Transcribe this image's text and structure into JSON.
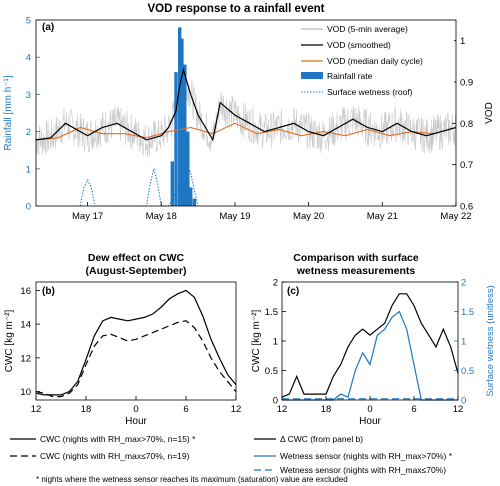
{
  "colors": {
    "black": "#000000",
    "blue": "#1f77c3",
    "orange": "#e2701f",
    "gray": "#c8c8c8",
    "bar": "#1f77c3"
  },
  "chart_data": [
    {
      "panel_label": "(a)",
      "type": "line",
      "title": "VOD response to a rainfall event",
      "xlabel": "",
      "ylabel_left": "Rainfall [mm h⁻¹]",
      "ylabel_right": "VOD",
      "x_ticks": [
        "May 17",
        "May 18",
        "May 19",
        "May 20",
        "May 21",
        "May 22"
      ],
      "ylim_left": [
        0,
        5
      ],
      "yticks_left": [
        "0",
        "1",
        "2",
        "3",
        "4",
        "5"
      ],
      "ylim_right": [
        0.6,
        1.05
      ],
      "yticks_right": [
        "0.6",
        "0.7",
        "0.8",
        "0.9",
        "1"
      ],
      "legend": [
        "VOD (5-min average)",
        "VOD (smoothed)",
        "VOD (median daily cycle)",
        "Rainfall rate",
        "Surface wetness (roof)"
      ],
      "legend_position": "top-right",
      "series": [
        {
          "name": "VOD (smoothed)",
          "x": [
            16.3,
            16.5,
            16.7,
            16.9,
            17.0,
            17.2,
            17.4,
            17.6,
            17.8,
            18.0,
            18.1,
            18.2,
            18.25,
            18.3,
            18.4,
            18.5,
            18.6,
            18.7,
            18.8,
            19.0,
            19.2,
            19.4,
            19.6,
            19.8,
            20.0,
            20.2,
            20.4,
            20.6,
            20.8,
            21.0,
            21.2,
            21.4,
            21.6,
            21.8,
            22.0
          ],
          "y": [
            0.76,
            0.765,
            0.8,
            0.78,
            0.77,
            0.79,
            0.8,
            0.78,
            0.76,
            0.77,
            0.79,
            0.83,
            0.89,
            0.93,
            0.87,
            0.82,
            0.79,
            0.76,
            0.85,
            0.82,
            0.8,
            0.78,
            0.79,
            0.8,
            0.78,
            0.77,
            0.79,
            0.81,
            0.79,
            0.78,
            0.8,
            0.78,
            0.77,
            0.78,
            0.79
          ]
        },
        {
          "name": "VOD (median daily cycle)",
          "x": [
            16.3,
            16.6,
            16.9,
            17.2,
            17.5,
            17.8,
            18.1,
            18.4,
            18.7,
            19.0,
            19.3,
            19.6,
            19.9,
            20.2,
            20.5,
            20.8,
            21.1,
            21.4,
            21.7,
            22.0
          ],
          "y": [
            0.76,
            0.765,
            0.79,
            0.775,
            0.775,
            0.765,
            0.78,
            0.79,
            0.775,
            0.8,
            0.775,
            0.785,
            0.77,
            0.78,
            0.77,
            0.785,
            0.77,
            0.78,
            0.775,
            0.79
          ]
        },
        {
          "name": "Rainfall rate",
          "x": [
            18.15,
            18.2,
            18.25,
            18.28,
            18.32,
            18.36,
            18.4,
            18.45
          ],
          "y": [
            1.2,
            3.6,
            4.8,
            4.5,
            3.8,
            2.0,
            0.5,
            0.2
          ]
        },
        {
          "name": "Surface wetness (roof)",
          "x": [
            16.9,
            16.95,
            17.0,
            17.05,
            17.1,
            17.8,
            17.85,
            17.9,
            17.95,
            18.0,
            18.1,
            18.3,
            18.35,
            18.4,
            18.45,
            18.5
          ],
          "y": [
            0,
            0.5,
            0.7,
            0.5,
            0,
            0,
            0.6,
            1.0,
            0.6,
            0,
            0,
            0.8,
            1.1,
            0.9,
            0.4,
            0
          ]
        }
      ]
    },
    {
      "panel_label": "(b)",
      "type": "line",
      "title": "Dew effect on CWC (August-September)",
      "title_lines": [
        "Dew effect on CWC",
        "(August-September)"
      ],
      "xlabel": "Hour",
      "ylabel": "CWC [kg m⁻²]",
      "x_ticks": [
        "12",
        "18",
        "0",
        "6",
        "12"
      ],
      "ylim": [
        9.5,
        16.5
      ],
      "yticks": [
        "10",
        "12",
        "14",
        "16"
      ],
      "series": [
        {
          "name": "CWC (nights with RH_max>70%, n=15) *",
          "x": [
            0,
            1,
            2,
            3,
            4,
            5,
            6,
            7,
            8,
            9,
            10,
            11,
            12,
            13,
            14,
            15,
            16,
            17,
            18,
            19,
            20,
            21,
            22,
            23,
            24
          ],
          "y": [
            9.9,
            9.8,
            9.8,
            9.8,
            10.0,
            10.6,
            11.9,
            13.3,
            14.2,
            14.4,
            14.3,
            14.2,
            14.3,
            14.4,
            14.6,
            15.0,
            15.5,
            15.8,
            16.0,
            15.6,
            14.5,
            13.1,
            12.0,
            11.0,
            10.4
          ]
        },
        {
          "name": "CWC (nights with RH_max≤70%, n=19)",
          "x": [
            0,
            1,
            2,
            3,
            4,
            5,
            6,
            7,
            8,
            9,
            10,
            11,
            12,
            13,
            14,
            15,
            16,
            17,
            18,
            19,
            20,
            21,
            22,
            23,
            24
          ],
          "y": [
            10.0,
            9.9,
            9.7,
            9.7,
            9.9,
            10.4,
            11.6,
            12.7,
            13.3,
            13.4,
            13.2,
            13.0,
            13.1,
            13.3,
            13.5,
            13.7,
            13.9,
            14.1,
            14.2,
            13.8,
            13.0,
            12.0,
            11.2,
            10.6,
            10.0
          ]
        }
      ],
      "legend": [
        "CWC (nights with RH_max>70%, n=15) *",
        "CWC (nights with RH_max≤70%, n=19)"
      ]
    },
    {
      "panel_label": "(c)",
      "type": "line",
      "title": "Comparison with surface wetness measurements",
      "title_lines": [
        "Comparison with surface",
        "wetness measurements"
      ],
      "xlabel": "Hour",
      "ylabel_left": "CWC [kg m⁻²]",
      "ylabel_right": "Surface wetness (unitless)",
      "x_ticks": [
        "12",
        "18",
        "0",
        "6",
        "12"
      ],
      "ylim_left": [
        0,
        2
      ],
      "yticks_left": [
        "0",
        "0.5",
        "1",
        "1.5",
        "2"
      ],
      "ylim_right": [
        0,
        2
      ],
      "yticks_right": [
        "0",
        "0.5",
        "1",
        "1.5",
        "2"
      ],
      "series": [
        {
          "name": "Δ CWC (from panel b)",
          "x": [
            0,
            1,
            2,
            3,
            4,
            5,
            6,
            7,
            8,
            9,
            10,
            11,
            12,
            13,
            14,
            15,
            16,
            17,
            18,
            19,
            20,
            21,
            22,
            23,
            24
          ],
          "y": [
            0.05,
            0.1,
            0.4,
            0.1,
            0.1,
            0.1,
            0.1,
            0.4,
            0.6,
            0.9,
            1.1,
            1.2,
            1.1,
            1.2,
            1.3,
            1.6,
            1.8,
            1.8,
            1.6,
            1.3,
            1.1,
            0.9,
            1.2,
            0.9,
            0.45
          ]
        },
        {
          "name": "Wetness sensor (nights with RH_max>70%) *",
          "x": [
            0,
            1,
            2,
            3,
            4,
            5,
            6,
            7,
            8,
            9,
            10,
            11,
            12,
            13,
            14,
            15,
            16,
            17,
            18,
            19,
            20,
            21,
            22,
            23,
            24
          ],
          "y": [
            0,
            0,
            0,
            0,
            0,
            0,
            0,
            0,
            0.1,
            0.05,
            0.5,
            0.8,
            0.6,
            1.1,
            1.2,
            1.4,
            1.5,
            1.2,
            0.6,
            0,
            0,
            0,
            0,
            0,
            0
          ]
        },
        {
          "name": "Wetness sensor (nights with RH_max≤70%)",
          "x": [
            0,
            24
          ],
          "y": [
            0.02,
            0.02
          ]
        }
      ],
      "legend": [
        "Δ CWC (from panel b)",
        "Wetness sensor (nights with RH_max>70%) *",
        "Wetness sensor (nights with RH_max≤70%)"
      ]
    }
  ],
  "footnote": "* nights where the wetness sensor reaches its maximum (saturation) value are excluded"
}
